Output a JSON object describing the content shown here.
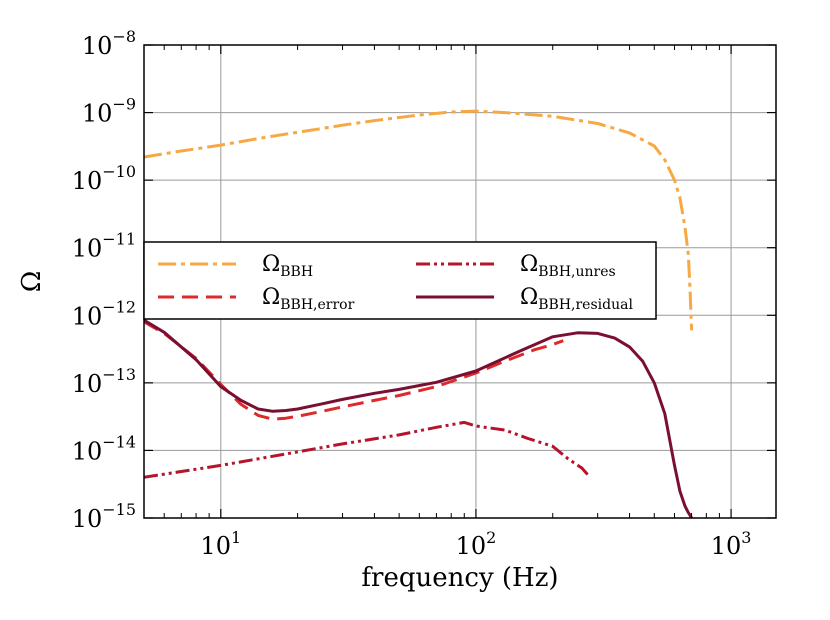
{
  "chart_data": {
    "type": "line",
    "xlabel": "frequency (Hz)",
    "ylabel": "Ω",
    "xscale": "log",
    "yscale": "log",
    "xlim": [
      5,
      1500
    ],
    "ylim": [
      1e-15,
      1e-08
    ],
    "grid": true,
    "legend_position": "center-left, two columns",
    "x_ticks": [
      {
        "value": 10,
        "base": "10",
        "exp": "1"
      },
      {
        "value": 100,
        "base": "10",
        "exp": "2"
      },
      {
        "value": 1000,
        "base": "10",
        "exp": "3"
      }
    ],
    "y_ticks": [
      {
        "value": 1e-08,
        "base": "10",
        "exp": "−8"
      },
      {
        "value": 1e-09,
        "base": "10",
        "exp": "−9"
      },
      {
        "value": 1e-10,
        "base": "10",
        "exp": "−10"
      },
      {
        "value": 1e-11,
        "base": "10",
        "exp": "−11"
      },
      {
        "value": 1e-12,
        "base": "10",
        "exp": "−12"
      },
      {
        "value": 1e-13,
        "base": "10",
        "exp": "−13"
      },
      {
        "value": 1e-14,
        "base": "10",
        "exp": "−14"
      },
      {
        "value": 1e-15,
        "base": "10",
        "exp": "−15"
      }
    ],
    "series": [
      {
        "name": "Ω_BBH",
        "label_main": "Ω",
        "label_sub": "BBH",
        "color": "#f8a843",
        "dash": "18,5,4,5",
        "legend_col": 0,
        "legend_row": 0,
        "x": [
          5,
          7,
          10,
          15,
          20,
          30,
          40,
          60,
          80,
          100,
          130,
          200,
          300,
          400,
          500,
          550,
          600,
          630,
          660,
          680,
          690,
          700
        ],
        "y": [
          2.2e-10,
          2.7e-10,
          3.3e-10,
          4.3e-10,
          5.1e-10,
          6.5e-10,
          7.6e-10,
          9.2e-10,
          1.02e-09,
          1.05e-09,
          1e-09,
          8.8e-10,
          6.9e-10,
          5e-10,
          3.2e-10,
          2e-10,
          1e-10,
          5.5e-11,
          2e-11,
          8e-12,
          2.5e-12,
          6e-13
        ]
      },
      {
        "name": "Ω_BBH,error",
        "label_main": "Ω",
        "label_sub": "BBH,error",
        "color": "#dd2a2a",
        "dash": "16,8",
        "legend_col": 0,
        "legend_row": 1,
        "x": [
          5,
          6,
          8,
          10,
          12,
          14,
          16,
          18,
          20,
          25,
          30,
          40,
          50,
          70,
          100,
          130,
          170,
          200,
          220
        ],
        "y": [
          8e-13,
          5.4e-13,
          2.3e-13,
          9.5e-14,
          4.8e-14,
          3.3e-14,
          2.9e-14,
          3e-14,
          3.2e-14,
          3.8e-14,
          4.4e-14,
          5.5e-14,
          6.5e-14,
          8.8e-14,
          1.4e-13,
          2.1e-13,
          3.1e-13,
          3.7e-13,
          4.2e-13
        ]
      },
      {
        "name": "Ω_BBH,unres",
        "label_main": "Ω",
        "label_sub": "BBH,unres",
        "color": "#b5142b",
        "dash": "14,4,3,4,3,4",
        "legend_col": 1,
        "legend_row": 0,
        "x": [
          5,
          10,
          20,
          30,
          50,
          70,
          90,
          100,
          130,
          160,
          200,
          230,
          260,
          280
        ],
        "y": [
          4e-15,
          6e-15,
          9.5e-15,
          1.25e-14,
          1.7e-14,
          2.2e-14,
          2.6e-14,
          2.3e-14,
          2e-14,
          1.5e-14,
          1.15e-14,
          7.5e-15,
          5.5e-15,
          4e-15
        ]
      },
      {
        "name": "Ω_BBH,residual",
        "label_main": "Ω",
        "label_sub": "BBH,residual",
        "color": "#7a1031",
        "dash": "",
        "legend_col": 1,
        "legend_row": 1,
        "x": [
          5,
          6,
          8,
          10,
          12,
          14,
          16,
          18,
          20,
          25,
          30,
          40,
          50,
          70,
          100,
          150,
          200,
          250,
          300,
          350,
          400,
          450,
          500,
          550,
          600,
          630,
          660,
          680,
          690,
          700
        ],
        "y": [
          8.5e-13,
          5.6e-13,
          2.2e-13,
          8.8e-14,
          5.5e-14,
          4.1e-14,
          3.8e-14,
          3.9e-14,
          4.1e-14,
          4.9e-14,
          5.7e-14,
          7e-14,
          8e-14,
          1.02e-13,
          1.5e-13,
          3e-13,
          4.8e-13,
          5.5e-13,
          5.4e-13,
          4.6e-13,
          3.4e-13,
          2.1e-13,
          1e-13,
          3.5e-14,
          6e-15,
          2.5e-15,
          1.5e-15,
          1.2e-15,
          1.1e-15,
          1e-15
        ]
      }
    ]
  }
}
